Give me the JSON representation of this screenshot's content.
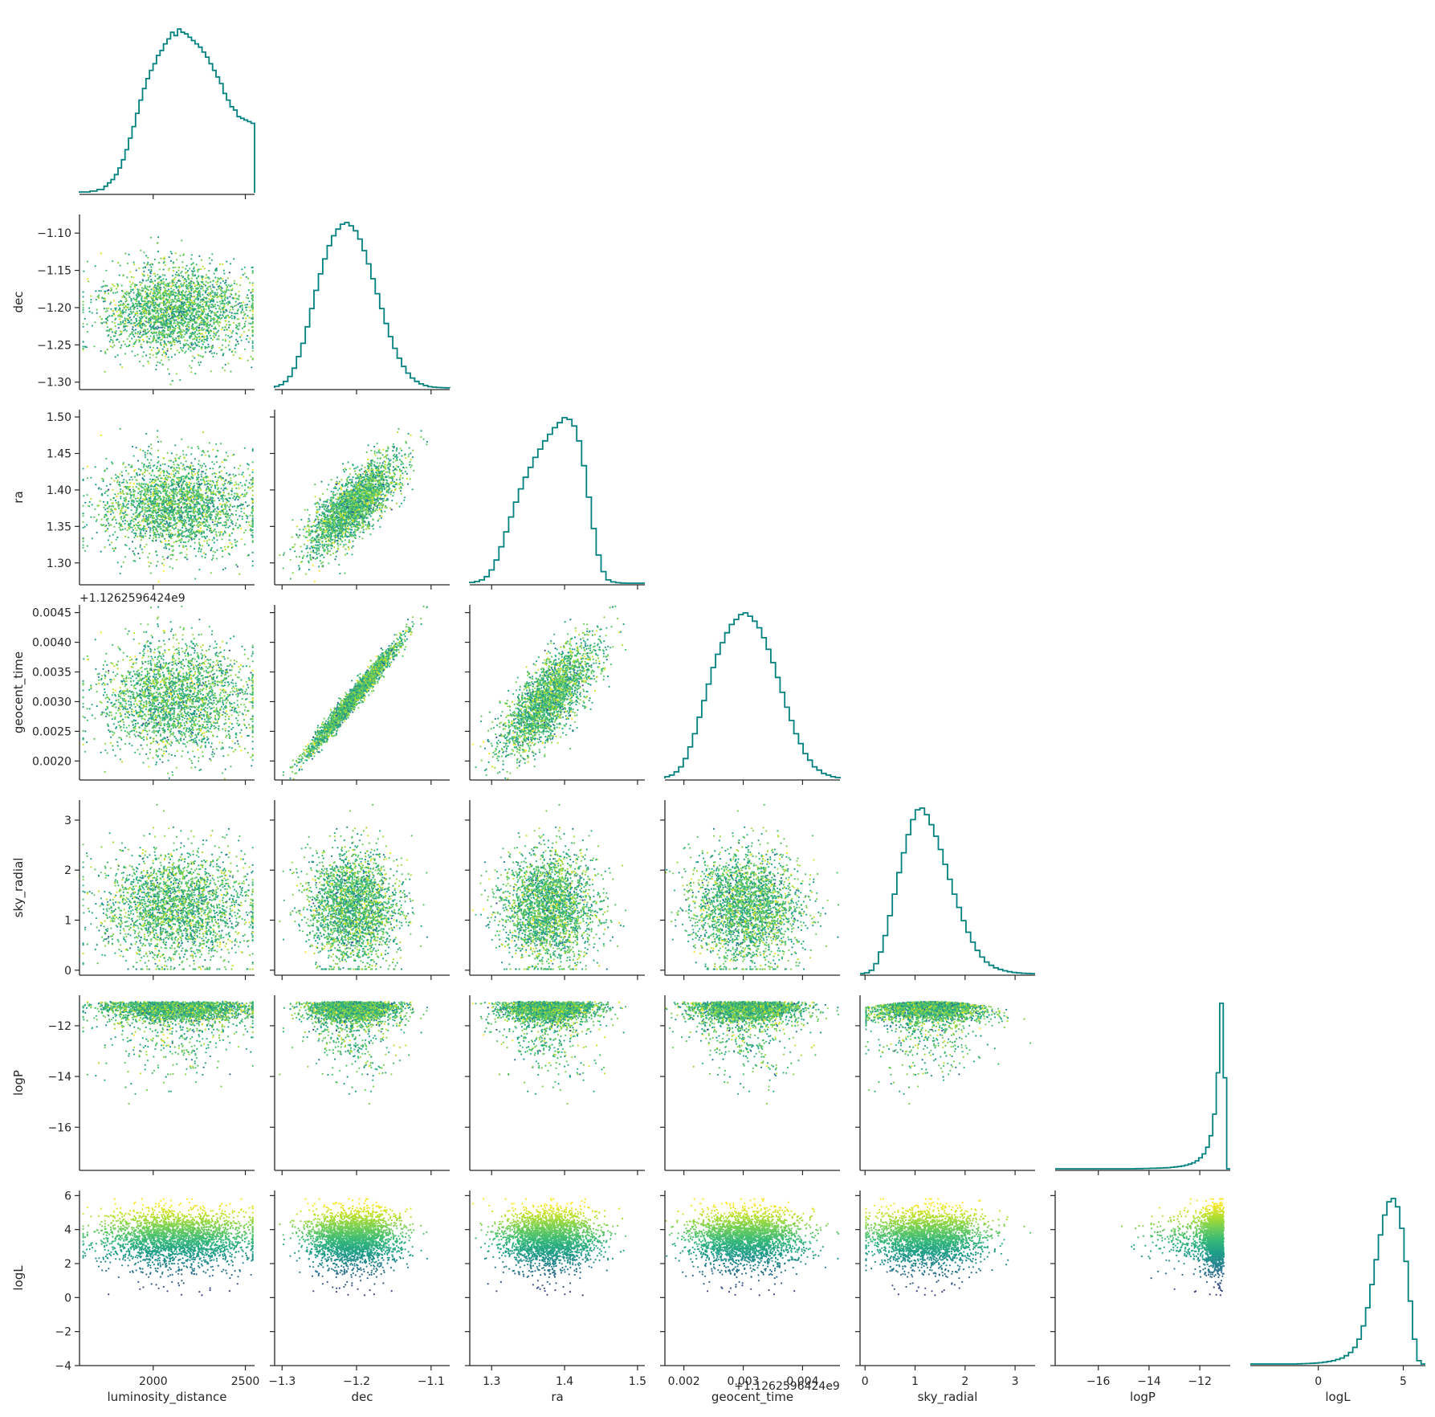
{
  "chart_data": {
    "type": "scatter",
    "layout": "corner",
    "diagonal": "step-histogram",
    "hist_color": "#00807f",
    "colormap": "viridis",
    "parameters": [
      "luminosity_distance",
      "dec",
      "ra",
      "geocent_time",
      "sky_radial",
      "logP",
      "logL"
    ],
    "axes": {
      "luminosity_distance": {
        "label": "luminosity_distance",
        "range": [
          1600,
          2550
        ],
        "ticks": [
          2000,
          2500
        ],
        "tick_labels": [
          "2000",
          "2500"
        ]
      },
      "dec": {
        "label": "dec",
        "range": [
          -1.31,
          -1.075
        ],
        "ticks": [
          -1.3,
          -1.25,
          -1.2,
          -1.15,
          -1.1
        ],
        "tick_labels": [
          "−1.30",
          "−1.25",
          "−1.20",
          "−1.15",
          "−1.10"
        ],
        "bottom_ticks": [
          -1.3,
          -1.2,
          -1.1
        ],
        "bottom_tick_labels": [
          "−1.3",
          "−1.2",
          "−1.1"
        ]
      },
      "ra": {
        "label": "ra",
        "range": [
          1.27,
          1.51
        ],
        "ticks": [
          1.3,
          1.35,
          1.4,
          1.45,
          1.5
        ],
        "tick_labels": [
          "1.30",
          "1.35",
          "1.40",
          "1.45",
          "1.50"
        ],
        "bottom_ticks": [
          1.3,
          1.4,
          1.5
        ],
        "bottom_tick_labels": [
          "1.3",
          "1.4",
          "1.5"
        ]
      },
      "geocent_time": {
        "label": "geocent_time",
        "range": [
          0.00168,
          0.00463
        ],
        "ticks": [
          0.002,
          0.0025,
          0.003,
          0.0035,
          0.004,
          0.0045
        ],
        "tick_labels": [
          "0.0020",
          "0.0025",
          "0.0030",
          "0.0035",
          "0.0040",
          "0.0045"
        ],
        "bottom_ticks": [
          0.002,
          0.003,
          0.004
        ],
        "bottom_tick_labels": [
          "0.002",
          "0.003",
          "0.004"
        ],
        "offset_text": "+1.1262596424e9"
      },
      "sky_radial": {
        "label": "sky_radial",
        "range": [
          -0.1,
          3.4
        ],
        "ticks": [
          0,
          1,
          2,
          3
        ],
        "tick_labels": [
          "0",
          "1",
          "2",
          "3"
        ]
      },
      "logP": {
        "label": "logP",
        "range": [
          -17.7,
          -10.8
        ],
        "ticks": [
          -16,
          -14,
          -12
        ],
        "tick_labels": [
          "−16",
          "−14",
          "−12"
        ]
      },
      "logL": {
        "label": "logL",
        "range": [
          -4,
          6.3
        ],
        "ticks": [
          -4,
          -2,
          0,
          2,
          4,
          6
        ],
        "tick_labels": [
          "−4",
          "−2",
          "0",
          "2",
          "4",
          "6"
        ],
        "bottom_ticks": [
          0,
          5
        ],
        "bottom_tick_labels": [
          "0",
          "5"
        ]
      }
    },
    "marginals": {
      "luminosity_distance": {
        "min": 1600,
        "max": 2550,
        "values": [
          0.005,
          0.005,
          0.005,
          0.01,
          0.01,
          0.02,
          0.02,
          0.04,
          0.06,
          0.08,
          0.11,
          0.15,
          0.2,
          0.26,
          0.33,
          0.4,
          0.48,
          0.56,
          0.63,
          0.69,
          0.74,
          0.78,
          0.83,
          0.86,
          0.9,
          0.93,
          0.97,
          0.95,
          0.99,
          0.97,
          0.96,
          0.94,
          0.92,
          0.9,
          0.88,
          0.85,
          0.82,
          0.78,
          0.74,
          0.7,
          0.66,
          0.6,
          0.56,
          0.52,
          0.5,
          0.46,
          0.45,
          0.44,
          0.43,
          0.42
        ]
      },
      "dec": {
        "min": -1.31,
        "max": -1.075,
        "values": [
          0.01,
          0.02,
          0.04,
          0.07,
          0.12,
          0.19,
          0.27,
          0.37,
          0.48,
          0.59,
          0.69,
          0.78,
          0.86,
          0.92,
          0.96,
          0.99,
          1.0,
          0.98,
          0.95,
          0.9,
          0.83,
          0.75,
          0.66,
          0.57,
          0.48,
          0.39,
          0.31,
          0.24,
          0.18,
          0.13,
          0.09,
          0.06,
          0.04,
          0.025,
          0.015,
          0.008,
          0.005,
          0.003,
          0.002,
          0.001
        ]
      },
      "ra": {
        "min": 1.27,
        "max": 1.51,
        "values": [
          0.005,
          0.01,
          0.02,
          0.04,
          0.08,
          0.14,
          0.22,
          0.31,
          0.4,
          0.49,
          0.57,
          0.64,
          0.7,
          0.76,
          0.81,
          0.86,
          0.9,
          0.94,
          0.97,
          1.0,
          0.99,
          0.95,
          0.86,
          0.71,
          0.52,
          0.33,
          0.17,
          0.07,
          0.02,
          0.008,
          0.003,
          0.001,
          0.0,
          0.0,
          0.0,
          0.0
        ]
      },
      "geocent_time": {
        "min": 0.00168,
        "max": 0.00463,
        "values": [
          0.01,
          0.02,
          0.04,
          0.07,
          0.12,
          0.19,
          0.27,
          0.37,
          0.47,
          0.57,
          0.67,
          0.75,
          0.82,
          0.88,
          0.93,
          0.96,
          0.99,
          1.0,
          0.98,
          0.95,
          0.91,
          0.85,
          0.78,
          0.7,
          0.61,
          0.52,
          0.43,
          0.35,
          0.27,
          0.21,
          0.15,
          0.11,
          0.07,
          0.05,
          0.03,
          0.02,
          0.01,
          0.005
        ]
      },
      "sky_radial": {
        "min": -0.1,
        "max": 3.4,
        "values": [
          0.0,
          0.005,
          0.02,
          0.06,
          0.13,
          0.23,
          0.35,
          0.48,
          0.61,
          0.73,
          0.84,
          0.93,
          0.99,
          1.0,
          0.96,
          0.9,
          0.83,
          0.75,
          0.66,
          0.57,
          0.48,
          0.4,
          0.32,
          0.25,
          0.19,
          0.14,
          0.1,
          0.07,
          0.05,
          0.035,
          0.025,
          0.017,
          0.011,
          0.007,
          0.004,
          0.002,
          0.001,
          0.0
        ]
      },
      "logP": {
        "min": -17.7,
        "max": -10.8,
        "values": [
          0,
          0,
          0,
          0,
          0,
          0,
          0,
          0,
          0,
          0,
          0,
          0,
          0,
          0,
          0,
          0,
          0,
          0,
          0,
          0,
          0,
          0,
          0,
          0.001,
          0.001,
          0.002,
          0.002,
          0.003,
          0.003,
          0.004,
          0.005,
          0.006,
          0.007,
          0.009,
          0.011,
          0.014,
          0.017,
          0.022,
          0.028,
          0.036,
          0.048,
          0.066,
          0.09,
          0.13,
          0.2,
          0.33,
          0.58,
          1.0,
          0.55,
          0.0
        ]
      },
      "logL": {
        "min": -4,
        "max": 6.3,
        "values": [
          0,
          0,
          0,
          0,
          0,
          0,
          0,
          0,
          0,
          0,
          0,
          0.001,
          0.002,
          0.003,
          0.004,
          0.006,
          0.008,
          0.011,
          0.015,
          0.02,
          0.027,
          0.036,
          0.05,
          0.07,
          0.1,
          0.15,
          0.23,
          0.34,
          0.48,
          0.63,
          0.78,
          0.9,
          0.98,
          1.0,
          0.95,
          0.82,
          0.62,
          0.38,
          0.15,
          0.02,
          0.0
        ]
      }
    },
    "correlations": {
      "dec__ra": 0.72,
      "dec__geocent_time": 0.98,
      "ra__geocent_time": 0.72
    }
  }
}
